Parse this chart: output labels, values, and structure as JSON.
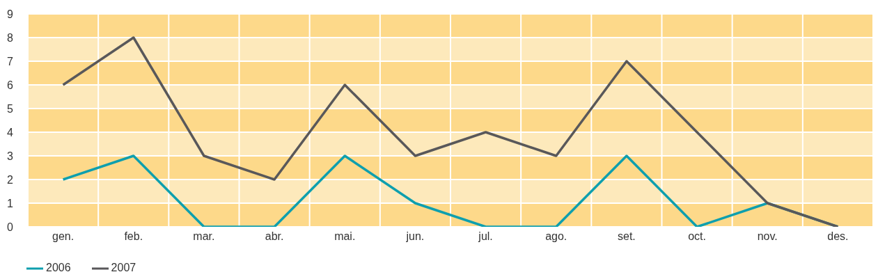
{
  "chart_data": {
    "type": "line",
    "categories": [
      "gen.",
      "feb.",
      "mar.",
      "abr.",
      "mai.",
      "jun.",
      "jul.",
      "ago.",
      "set.",
      "oct.",
      "nov.",
      "des."
    ],
    "series": [
      {
        "name": "2006",
        "color": "#0e9fae",
        "values": [
          2,
          3,
          0,
          0,
          3,
          1,
          0,
          0,
          3,
          0,
          1,
          0
        ]
      },
      {
        "name": "2007",
        "color": "#59585a",
        "values": [
          6,
          8,
          3,
          2,
          6,
          3,
          4,
          3,
          7,
          4,
          1,
          0
        ]
      }
    ],
    "ylim": [
      0,
      9
    ],
    "yticks": [
      0,
      1,
      2,
      3,
      4,
      5,
      6,
      7,
      8,
      9
    ],
    "grid": true,
    "legend": "bottom left",
    "marker": "none",
    "line_style": "solid",
    "bands": [
      {
        "axis": "y",
        "from": 0,
        "to": 1,
        "color": "#fdd98a"
      },
      {
        "axis": "y",
        "from": 1,
        "to": 2,
        "color": "#fde9bb"
      },
      {
        "axis": "y",
        "from": 2,
        "to": 3,
        "color": "#fdd98a"
      },
      {
        "axis": "y",
        "from": 3,
        "to": 4,
        "color": "#fde9bb"
      },
      {
        "axis": "y",
        "from": 4,
        "to": 5,
        "color": "#fdd98a"
      },
      {
        "axis": "y",
        "from": 5,
        "to": 6,
        "color": "#fde9bb"
      },
      {
        "axis": "y",
        "from": 6,
        "to": 7,
        "color": "#fdd98a"
      },
      {
        "axis": "y",
        "from": 7,
        "to": 8,
        "color": "#fde9bb"
      },
      {
        "axis": "y",
        "from": 8,
        "to": 9,
        "color": "#fdd98a"
      }
    ]
  }
}
